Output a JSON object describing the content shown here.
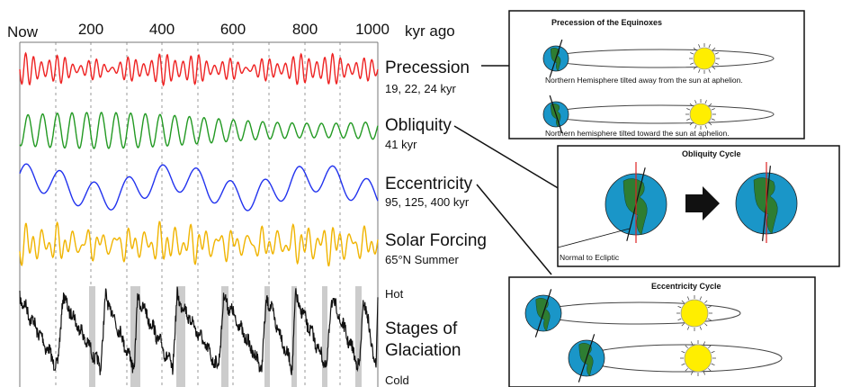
{
  "axis": {
    "now_label": "Now",
    "ticks": [
      "200",
      "400",
      "600",
      "800",
      "1000"
    ],
    "unit": "kyr ago"
  },
  "curves": [
    {
      "id": "precession",
      "title": "Precession",
      "subtitle": "19, 22, 24 kyr",
      "color": "#ee2222"
    },
    {
      "id": "obliquity",
      "title": "Obliquity",
      "subtitle": "41 kyr",
      "color": "#229922"
    },
    {
      "id": "eccentricity",
      "title": "Eccentricity",
      "subtitle": "95, 125, 400 kyr",
      "color": "#2233ee"
    },
    {
      "id": "solar",
      "title": "Solar Forcing",
      "subtitle": "65°N Summer",
      "color": "#f0b400"
    }
  ],
  "glaciation": {
    "title_line1": "Stages of",
    "title_line2": "Glaciation",
    "hot_label": "Hot",
    "cold_label": "Cold",
    "color": "#111111",
    "shade_color": "#cccccc"
  },
  "panels": {
    "precession": {
      "title": "Precession of the Equinoxes",
      "caption1": "Northern Hemisphere tilted away from the sun at aphelion.",
      "caption2": "Northern hemisphere tilted toward the sun at aphelion."
    },
    "obliquity": {
      "title": "Obliquity Cycle",
      "normal_label": "Normal to Ecliptic"
    },
    "eccentricity": {
      "title": "Eccentricity Cycle"
    }
  },
  "colors": {
    "earth_ocean": "#1a96c8",
    "earth_land": "#2e7d32",
    "sun": "#ffee00",
    "axis_line": "#dd2222"
  }
}
